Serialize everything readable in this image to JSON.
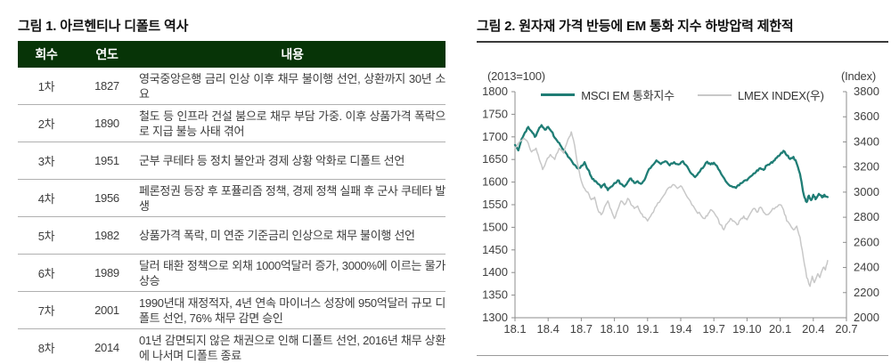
{
  "fig1": {
    "title": "그림 1. 아르헨티나 디폴트 역사",
    "table": {
      "headers": [
        "회수",
        "연도",
        "내용"
      ],
      "header_bg": "#073407",
      "rows": [
        {
          "no": "1차",
          "year": "1827",
          "desc": "영국중앙은행 금리 인상 이후 채무 불이행 선언, 상환까지 30년 소요"
        },
        {
          "no": "2차",
          "year": "1890",
          "desc": "철도 등 인프라 건설 붐으로 채무 부담 가중. 이후 상품가격 폭락으로 지급 불능 사태 겪어"
        },
        {
          "no": "3차",
          "year": "1951",
          "desc": "군부 쿠테타 등 정치 불안과 경제 상황 악화로 디폴트 선언"
        },
        {
          "no": "4차",
          "year": "1956",
          "desc": "페론정권 등장 후 포퓰리즘 정책, 경제 정책 실패 후 군사 쿠테타 발생"
        },
        {
          "no": "5차",
          "year": "1982",
          "desc": "상품가격 폭락, 미 연준 기준금리 인상으로 채무 불이행 선언"
        },
        {
          "no": "6차",
          "year": "1989",
          "desc": "달러 태환 정책으로 외채 1000억달러 증가, 3000%에 이르는 물가 상승"
        },
        {
          "no": "7차",
          "year": "2001",
          "desc": "1990년대 재정적자, 4년 연속 마이너스 성장에 950억달러 규모 디폴트 선언, 76% 채무 감면 승인"
        },
        {
          "no": "8차",
          "year": "2014",
          "desc": "01년 감면되지 않은 채권으로 인해 디폴트 선언, 2016년 채무 상환에 나서며 디폴트 종료"
        }
      ]
    }
  },
  "fig2": {
    "title": "그림 2. 원자재 가격 반등에 EM 통화 지수 하방압력 제한적",
    "left_unit": "(2013=100)",
    "right_unit": "(Index)"
  },
  "chart_data": {
    "type": "line",
    "title": "원자재 가격 반등에 EM 통화 지수 하방압력 제한적",
    "grid": false,
    "legend_position": "top-center",
    "x_axis": {
      "tick_labels": [
        "18.1",
        "18.4",
        "18.7",
        "18.10",
        "19.1",
        "19.4",
        "19.7",
        "19.10",
        "20.1",
        "20.4",
        "20.7"
      ],
      "months_from_2018_01": [
        0,
        30
      ],
      "axis_color": "#8c8c8c"
    },
    "left_axis": {
      "unit": "(2013=100)",
      "min": 1300,
      "max": 1800,
      "ticks": [
        1800,
        1750,
        1700,
        1650,
        1600,
        1550,
        1500,
        1450,
        1400,
        1350,
        1300
      ]
    },
    "right_axis": {
      "unit": "(Index)",
      "min": 2000,
      "max": 3800,
      "ticks": [
        3800,
        3600,
        3400,
        3200,
        3000,
        2800,
        2600,
        2400,
        2200,
        2000
      ]
    },
    "series": [
      {
        "name": "MSCI EM 통화지수",
        "axis": "left",
        "color": "#1f7d75",
        "stroke_width": 2.3,
        "jitter": 2.5,
        "points": [
          [
            0,
            1682
          ],
          [
            0.3,
            1670
          ],
          [
            0.6,
            1695
          ],
          [
            0.9,
            1710
          ],
          [
            1.2,
            1722
          ],
          [
            1.5,
            1712
          ],
          [
            1.8,
            1700
          ],
          [
            2.1,
            1714
          ],
          [
            2.4,
            1726
          ],
          [
            2.7,
            1716
          ],
          [
            3.0,
            1722
          ],
          [
            3.3,
            1712
          ],
          [
            3.6,
            1698
          ],
          [
            3.9,
            1688
          ],
          [
            4.2,
            1678
          ],
          [
            4.5,
            1668
          ],
          [
            4.8,
            1656
          ],
          [
            5.1,
            1648
          ],
          [
            5.4,
            1638
          ],
          [
            5.7,
            1630
          ],
          [
            6.0,
            1636
          ],
          [
            6.3,
            1644
          ],
          [
            6.6,
            1628
          ],
          [
            6.9,
            1612
          ],
          [
            7.2,
            1602
          ],
          [
            7.5,
            1596
          ],
          [
            7.8,
            1588
          ],
          [
            8.1,
            1596
          ],
          [
            8.4,
            1582
          ],
          [
            8.7,
            1590
          ],
          [
            9.0,
            1598
          ],
          [
            9.3,
            1604
          ],
          [
            9.6,
            1596
          ],
          [
            9.9,
            1590
          ],
          [
            10.2,
            1600
          ],
          [
            10.5,
            1608
          ],
          [
            10.8,
            1598
          ],
          [
            11.1,
            1602
          ],
          [
            11.4,
            1596
          ],
          [
            11.7,
            1604
          ],
          [
            12.0,
            1622
          ],
          [
            12.4,
            1636
          ],
          [
            12.8,
            1648
          ],
          [
            13.2,
            1640
          ],
          [
            13.6,
            1646
          ],
          [
            14.0,
            1637
          ],
          [
            14.4,
            1644
          ],
          [
            14.8,
            1639
          ],
          [
            15.2,
            1646
          ],
          [
            15.6,
            1634
          ],
          [
            16.0,
            1618
          ],
          [
            16.3,
            1611
          ],
          [
            16.6,
            1620
          ],
          [
            17.0,
            1631
          ],
          [
            17.4,
            1645
          ],
          [
            17.7,
            1639
          ],
          [
            18.0,
            1643
          ],
          [
            18.4,
            1629
          ],
          [
            18.8,
            1613
          ],
          [
            19.2,
            1598
          ],
          [
            19.6,
            1591
          ],
          [
            20.0,
            1587
          ],
          [
            20.3,
            1593
          ],
          [
            20.6,
            1599
          ],
          [
            21.0,
            1604
          ],
          [
            21.3,
            1612
          ],
          [
            21.6,
            1619
          ],
          [
            21.9,
            1626
          ],
          [
            22.2,
            1631
          ],
          [
            22.5,
            1627
          ],
          [
            22.8,
            1637
          ],
          [
            23.1,
            1641
          ],
          [
            23.4,
            1647
          ],
          [
            23.7,
            1654
          ],
          [
            24.0,
            1661
          ],
          [
            24.3,
            1669
          ],
          [
            24.6,
            1659
          ],
          [
            24.9,
            1651
          ],
          [
            25.2,
            1656
          ],
          [
            25.5,
            1641
          ],
          [
            25.8,
            1618
          ],
          [
            26.0,
            1590
          ],
          [
            26.2,
            1566
          ],
          [
            26.4,
            1556
          ],
          [
            26.6,
            1570
          ],
          [
            26.8,
            1560
          ],
          [
            27.0,
            1572
          ],
          [
            27.2,
            1562
          ],
          [
            27.5,
            1574
          ],
          [
            27.8,
            1566
          ],
          [
            28.0,
            1572
          ],
          [
            28.3,
            1567
          ]
        ]
      },
      {
        "name": "LMEX INDEX(우)",
        "axis": "right",
        "color": "#c8c8c8",
        "stroke_width": 1.5,
        "jitter": 11,
        "points": [
          [
            0,
            3350
          ],
          [
            0.4,
            3400
          ],
          [
            0.8,
            3430
          ],
          [
            1.2,
            3390
          ],
          [
            1.5,
            3320
          ],
          [
            1.9,
            3350
          ],
          [
            2.2,
            3260
          ],
          [
            2.5,
            3180
          ],
          [
            2.8,
            3240
          ],
          [
            3.2,
            3300
          ],
          [
            3.6,
            3260
          ],
          [
            4.0,
            3350
          ],
          [
            4.4,
            3310
          ],
          [
            4.8,
            3420
          ],
          [
            5.1,
            3480
          ],
          [
            5.4,
            3370
          ],
          [
            5.7,
            3210
          ],
          [
            6.0,
            3090
          ],
          [
            6.3,
            3030
          ],
          [
            6.6,
            3000
          ],
          [
            6.9,
            2940
          ],
          [
            7.2,
            2960
          ],
          [
            7.5,
            2860
          ],
          [
            7.8,
            2820
          ],
          [
            8.1,
            2880
          ],
          [
            8.4,
            2930
          ],
          [
            8.7,
            2860
          ],
          [
            9.0,
            2790
          ],
          [
            9.3,
            2860
          ],
          [
            9.6,
            2930
          ],
          [
            9.9,
            2900
          ],
          [
            10.2,
            2950
          ],
          [
            10.5,
            2900
          ],
          [
            10.8,
            2870
          ],
          [
            11.1,
            2890
          ],
          [
            11.4,
            2830
          ],
          [
            11.7,
            2800
          ],
          [
            12.0,
            2770
          ],
          [
            12.4,
            2830
          ],
          [
            12.8,
            2890
          ],
          [
            13.2,
            2940
          ],
          [
            13.6,
            2990
          ],
          [
            14.0,
            3040
          ],
          [
            14.3,
            3060
          ],
          [
            14.7,
            3030
          ],
          [
            15.0,
            3050
          ],
          [
            15.3,
            3010
          ],
          [
            15.6,
            2960
          ],
          [
            16.0,
            2900
          ],
          [
            16.4,
            2850
          ],
          [
            16.8,
            2820
          ],
          [
            17.1,
            2790
          ],
          [
            17.4,
            2810
          ],
          [
            17.7,
            2860
          ],
          [
            18.0,
            2840
          ],
          [
            18.3,
            2800
          ],
          [
            18.6,
            2740
          ],
          [
            18.9,
            2700
          ],
          [
            19.2,
            2750
          ],
          [
            19.5,
            2790
          ],
          [
            19.8,
            2770
          ],
          [
            20.1,
            2740
          ],
          [
            20.4,
            2780
          ],
          [
            20.7,
            2810
          ],
          [
            21.0,
            2780
          ],
          [
            21.3,
            2830
          ],
          [
            21.6,
            2870
          ],
          [
            21.9,
            2840
          ],
          [
            22.2,
            2880
          ],
          [
            22.5,
            2840
          ],
          [
            22.8,
            2820
          ],
          [
            23.2,
            2850
          ],
          [
            23.6,
            2880
          ],
          [
            24.0,
            2900
          ],
          [
            24.3,
            2860
          ],
          [
            24.6,
            2770
          ],
          [
            24.9,
            2740
          ],
          [
            25.2,
            2700
          ],
          [
            25.5,
            2730
          ],
          [
            25.8,
            2640
          ],
          [
            26.1,
            2480
          ],
          [
            26.4,
            2320
          ],
          [
            26.7,
            2250
          ],
          [
            26.9,
            2330
          ],
          [
            27.1,
            2280
          ],
          [
            27.4,
            2350
          ],
          [
            27.6,
            2320
          ],
          [
            27.9,
            2400
          ],
          [
            28.1,
            2380
          ],
          [
            28.3,
            2455
          ]
        ]
      }
    ]
  }
}
